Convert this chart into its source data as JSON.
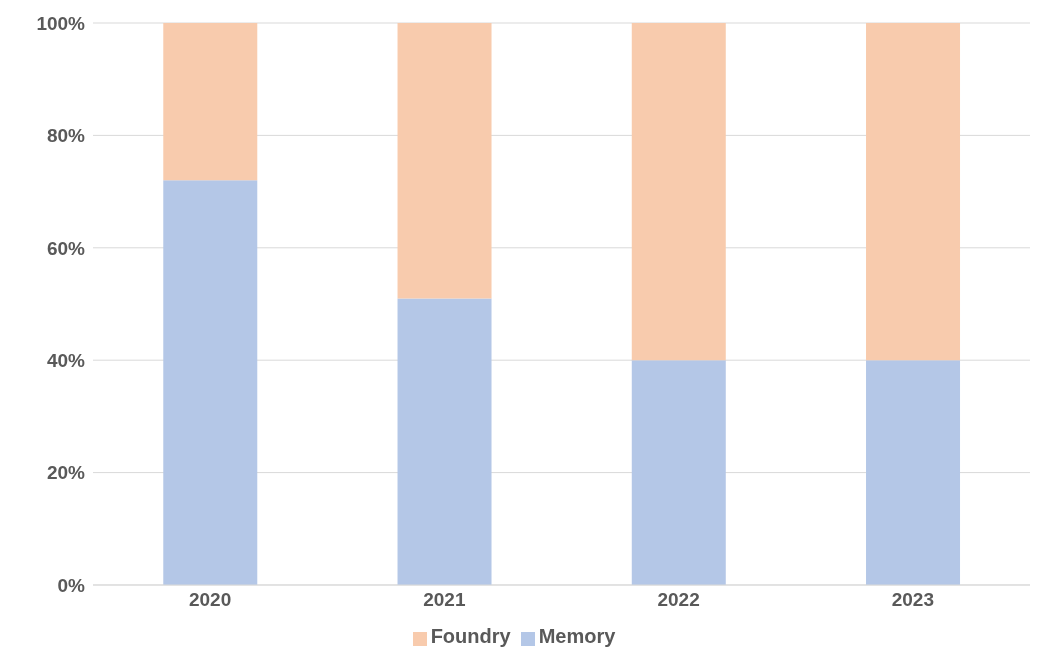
{
  "chart_data": {
    "type": "bar",
    "stacked": true,
    "categories": [
      "2020",
      "2021",
      "2022",
      "2023"
    ],
    "series": [
      {
        "name": "Memory",
        "color": "#b4c7e7",
        "values": [
          72,
          51,
          40,
          40
        ]
      },
      {
        "name": "Foundry",
        "color": "#f8cbad",
        "values": [
          28,
          49,
          60,
          60
        ]
      }
    ],
    "ylim": [
      0,
      100
    ],
    "yticks": [
      {
        "value": 0,
        "label": "0%"
      },
      {
        "value": 20,
        "label": "20%"
      },
      {
        "value": 40,
        "label": "40%"
      },
      {
        "value": 60,
        "label": "60%"
      },
      {
        "value": 80,
        "label": "80%"
      },
      {
        "value": 100,
        "label": "100%"
      }
    ],
    "grid": "y",
    "legend": "bottom"
  }
}
